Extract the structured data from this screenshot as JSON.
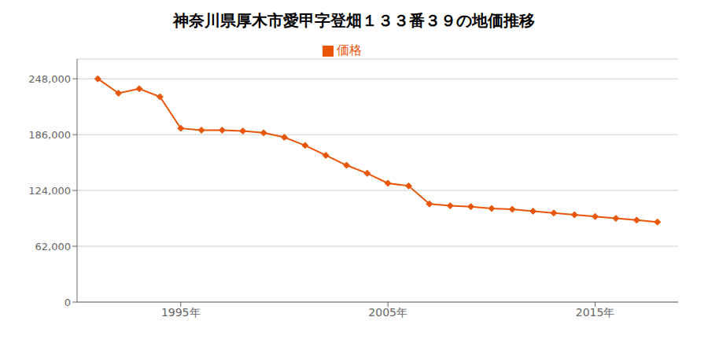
{
  "chart_data": {
    "type": "line",
    "title": "神奈川県厚木市愛甲字登畑１３３番３９の地価推移",
    "x": [
      1991,
      1992,
      1993,
      1994,
      1995,
      1996,
      1997,
      1998,
      1999,
      2000,
      2001,
      2002,
      2003,
      2004,
      2005,
      2006,
      2007,
      2008,
      2009,
      2010,
      2011,
      2012,
      2013,
      2014,
      2015,
      2016,
      2017,
      2018
    ],
    "series": [
      {
        "name": "価格",
        "color": "#E8560A",
        "marker": "diamond",
        "values": [
          248000,
          232000,
          237000,
          228000,
          193000,
          191000,
          191000,
          190000,
          188000,
          183000,
          174000,
          163000,
          152000,
          143000,
          132000,
          129000,
          109000,
          107000,
          106000,
          104000,
          103000,
          101000,
          99000,
          97000,
          95000,
          93000,
          91000,
          89000
        ]
      }
    ],
    "xlim": [
      1990,
      2019
    ],
    "xticks": [
      {
        "value": 1995,
        "label": "1995年"
      },
      {
        "value": 2005,
        "label": "2005年"
      },
      {
        "value": 2015,
        "label": "2015年"
      }
    ],
    "ylim": [
      0,
      270000
    ],
    "yticks": [
      0,
      {
        "value": 62000,
        "label": "62,000"
      },
      {
        "value": 124000,
        "label": "124,000"
      },
      {
        "value": 186000,
        "label": "186,000"
      },
      {
        "value": 248000,
        "label": "248,000"
      }
    ],
    "grid": "y",
    "legend": "top"
  }
}
